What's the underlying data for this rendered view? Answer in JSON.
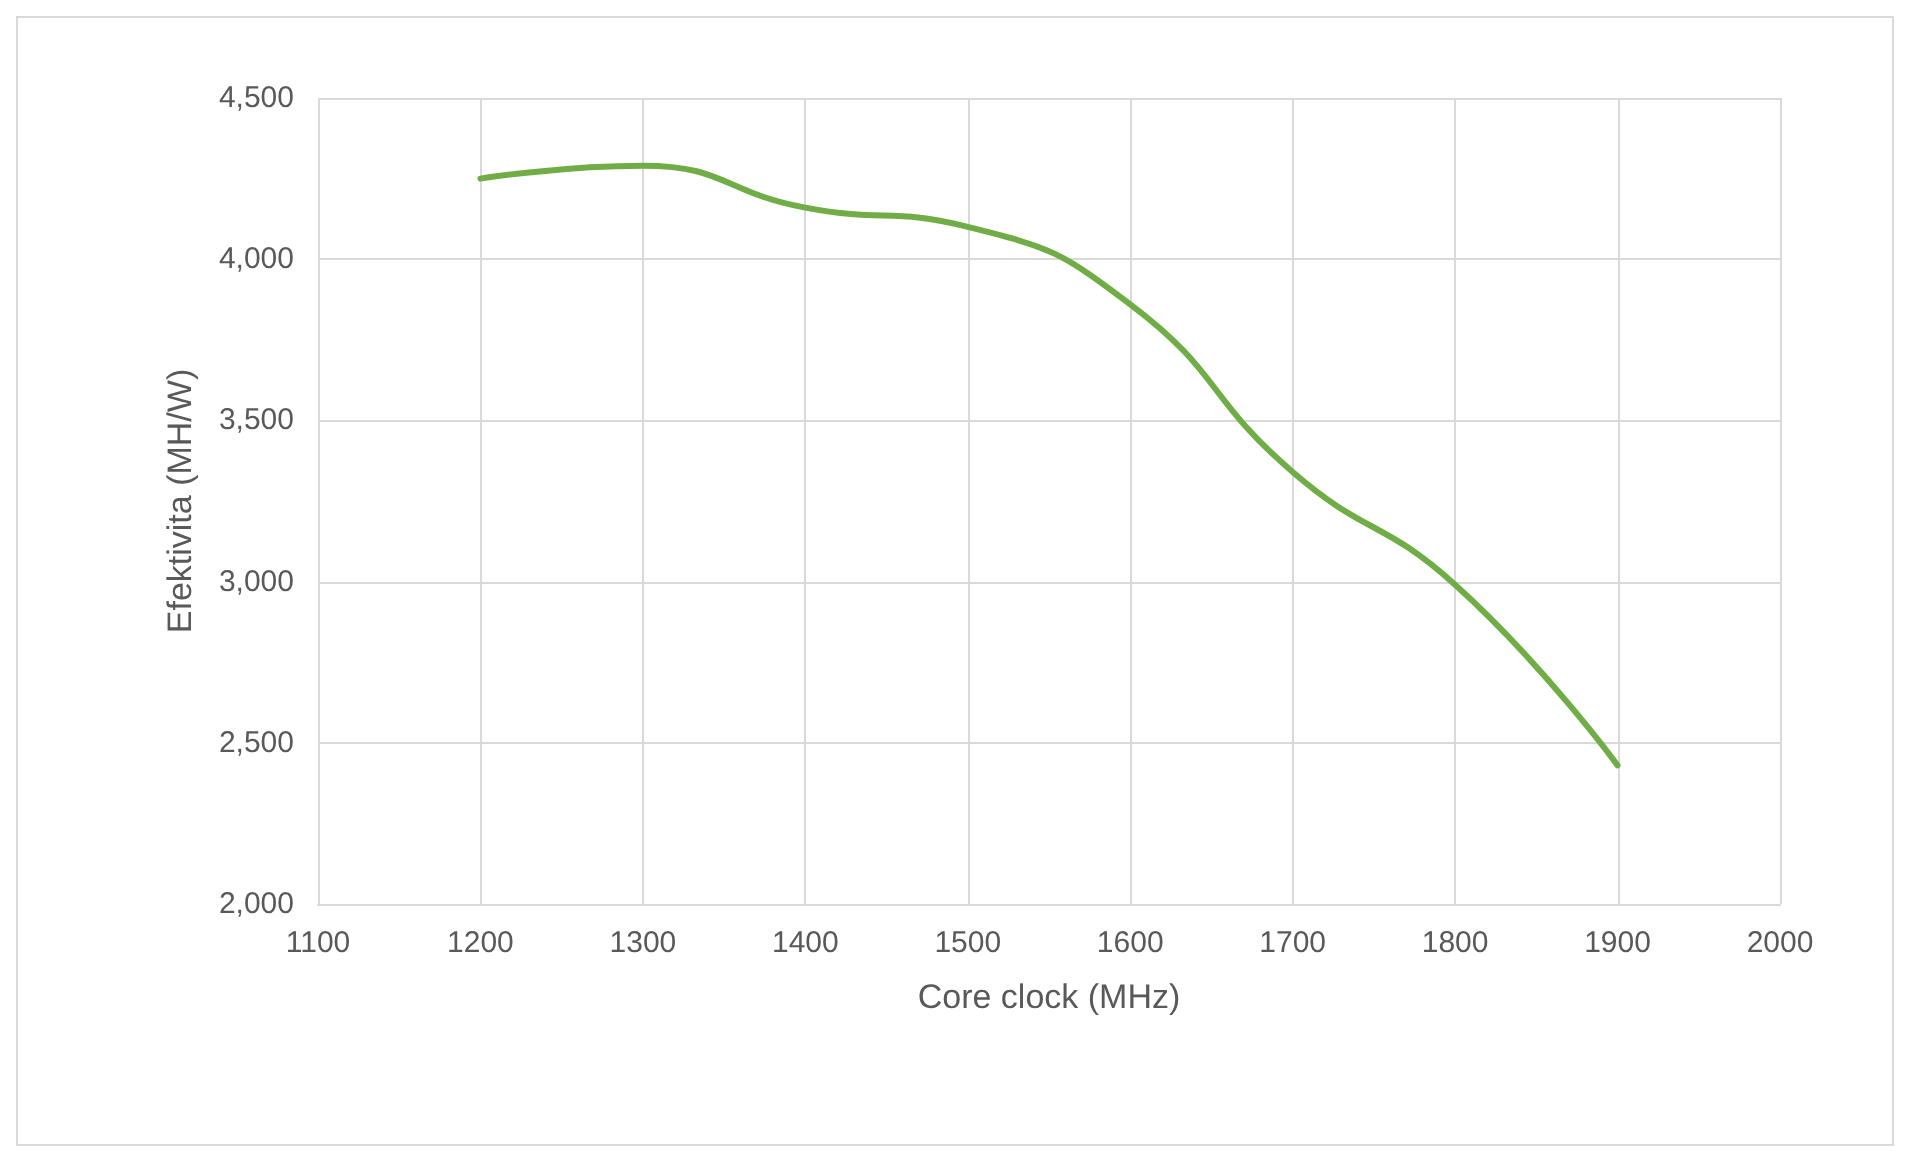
{
  "chart_data": {
    "type": "line",
    "xlabel": "Core clock (MHz)",
    "ylabel": "Efektivita (MH/W)",
    "x": [
      1200,
      1300,
      1400,
      1500,
      1600,
      1700,
      1800,
      1900
    ],
    "series": [
      {
        "color": "#70ad47",
        "values": [
          4250,
          4290,
          4160,
          4100,
          3860,
          3340,
          2990,
          2430
        ]
      }
    ],
    "xlim": [
      1100,
      2000
    ],
    "xticks": [
      1100,
      1200,
      1300,
      1400,
      1500,
      1600,
      1700,
      1800,
      1900,
      2000
    ],
    "ylim": [
      2000,
      4500
    ],
    "yticks": [
      {
        "value": 2000,
        "label": "2,000"
      },
      {
        "value": 2500,
        "label": "2,500"
      },
      {
        "value": 3000,
        "label": "3,000"
      },
      {
        "value": 3500,
        "label": "3,500"
      },
      {
        "value": 4000,
        "label": "4,000"
      },
      {
        "value": 4500,
        "label": "4,500"
      }
    ],
    "grid": true,
    "marker": "none",
    "line_style": "solid"
  }
}
